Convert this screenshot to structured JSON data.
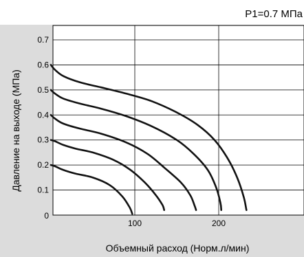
{
  "colors": {
    "panel_bg": "#dcdcdc",
    "plot_bg": "#ffffff",
    "curve": "#111111",
    "grid": "#000000"
  },
  "chart_data": {
    "type": "line",
    "annotation": "P1=0.7 МПa",
    "xlabel": "Объемный расход (Норм.л/мин)",
    "ylabel": "Давление на выходе (МПa)",
    "xlim": [
      0,
      250
    ],
    "ylim": [
      0,
      0.75
    ],
    "xticks": [
      100,
      200
    ],
    "yticks": [
      0.1,
      0.2,
      0.3,
      0.4,
      0.5,
      0.6,
      0.7
    ],
    "origin_label": "0",
    "grid": true,
    "series": [
      {
        "points": [
          [
            0,
            0.6
          ],
          [
            5,
            0.58
          ],
          [
            15,
            0.555
          ],
          [
            35,
            0.53
          ],
          [
            60,
            0.51
          ],
          [
            90,
            0.485
          ],
          [
            120,
            0.455
          ],
          [
            150,
            0.41
          ],
          [
            175,
            0.36
          ],
          [
            195,
            0.3
          ],
          [
            210,
            0.23
          ],
          [
            222,
            0.15
          ],
          [
            230,
            0.07
          ],
          [
            233,
            0.02
          ]
        ]
      },
      {
        "points": [
          [
            0,
            0.5
          ],
          [
            5,
            0.485
          ],
          [
            15,
            0.465
          ],
          [
            35,
            0.445
          ],
          [
            60,
            0.425
          ],
          [
            90,
            0.395
          ],
          [
            120,
            0.355
          ],
          [
            150,
            0.3
          ],
          [
            170,
            0.245
          ],
          [
            187,
            0.18
          ],
          [
            197,
            0.11
          ],
          [
            202,
            0.05
          ],
          [
            203,
            0.02
          ]
        ]
      },
      {
        "points": [
          [
            0,
            0.4
          ],
          [
            5,
            0.385
          ],
          [
            15,
            0.365
          ],
          [
            35,
            0.345
          ],
          [
            60,
            0.325
          ],
          [
            90,
            0.29
          ],
          [
            115,
            0.245
          ],
          [
            135,
            0.19
          ],
          [
            155,
            0.13
          ],
          [
            166,
            0.08
          ],
          [
            171,
            0.04
          ],
          [
            173,
            0.02
          ]
        ]
      },
      {
        "points": [
          [
            0,
            0.3
          ],
          [
            5,
            0.295
          ],
          [
            15,
            0.28
          ],
          [
            30,
            0.265
          ],
          [
            50,
            0.25
          ],
          [
            75,
            0.22
          ],
          [
            95,
            0.18
          ],
          [
            112,
            0.13
          ],
          [
            125,
            0.08
          ],
          [
            133,
            0.04
          ],
          [
            135,
            0.02
          ]
        ]
      },
      {
        "points": [
          [
            0,
            0.2
          ],
          [
            5,
            0.195
          ],
          [
            15,
            0.18
          ],
          [
            30,
            0.165
          ],
          [
            50,
            0.15
          ],
          [
            70,
            0.12
          ],
          [
            85,
            0.075
          ],
          [
            94,
            0.03
          ],
          [
            97,
            0.005
          ]
        ]
      }
    ]
  }
}
